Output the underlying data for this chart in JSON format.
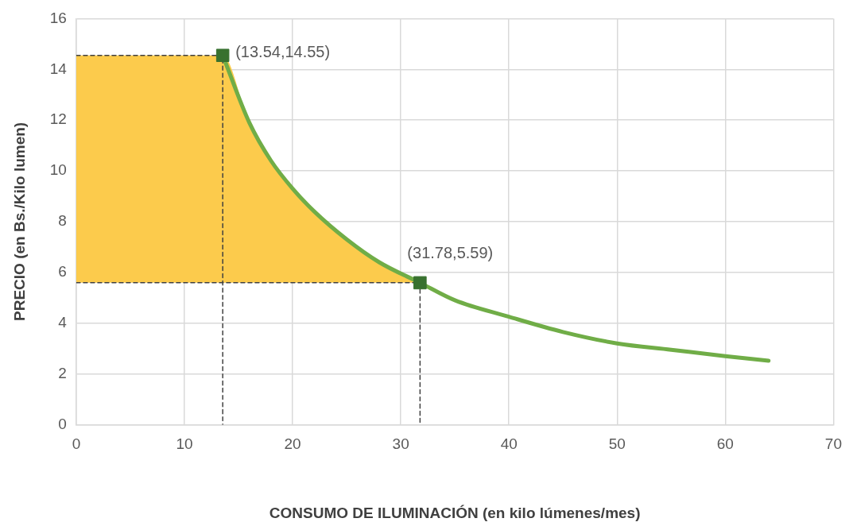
{
  "chart_data": {
    "type": "line",
    "xlabel": "CONSUMO DE ILUMINACIÓN (en kilo lúmenes/mes)",
    "ylabel": "PRECIO (en Bs./Kilo lumen)",
    "xlim": [
      0,
      70
    ],
    "xticks": [
      0,
      10,
      20,
      30,
      40,
      50,
      60,
      70
    ],
    "ylim": [
      0,
      16
    ],
    "yticks": [
      0,
      2,
      4,
      6,
      8,
      10,
      12,
      14,
      16
    ],
    "grid": true,
    "legend": false,
    "series": [
      {
        "type": "area",
        "color": "#fccb4c",
        "x": [
          0,
          13.54,
          16,
          18,
          20,
          22,
          25,
          28,
          31.78
        ],
        "values": [
          14.55,
          14.55,
          11.9,
          10.4,
          9.3,
          8.4,
          7.3,
          6.4,
          5.59
        ]
      },
      {
        "type": "line",
        "color": "#404040",
        "line_style": "dashed",
        "marker": "none",
        "x": [
          0,
          13.54,
          13.54
        ],
        "values": [
          14.55,
          14.55,
          0
        ]
      },
      {
        "type": "line",
        "color": "#404040",
        "line_style": "dashed",
        "marker": "none",
        "x": [
          0,
          31.78,
          31.78
        ],
        "values": [
          5.59,
          5.59,
          0
        ]
      },
      {
        "color": "#70ad47",
        "line_style": "solid",
        "marker": "none",
        "x": [
          13.54,
          16,
          18,
          20,
          22,
          25,
          28,
          31.78,
          35,
          40,
          45,
          50,
          55,
          60,
          64
        ],
        "values": [
          14.55,
          11.9,
          10.4,
          9.3,
          8.4,
          7.3,
          6.4,
          5.59,
          4.9,
          4.25,
          3.65,
          3.2,
          2.95,
          2.7,
          2.52
        ]
      },
      {
        "type": "scatter",
        "color": "#38712f",
        "marker": "square",
        "x": [
          13.54,
          31.78
        ],
        "values": [
          14.55,
          5.59
        ]
      }
    ],
    "annotations": [
      {
        "text": "(13.54,14.55)",
        "x": 13.54,
        "y": 14.55
      },
      {
        "text": "(31.78,5.59)",
        "x": 31.78,
        "y": 5.59
      }
    ]
  }
}
